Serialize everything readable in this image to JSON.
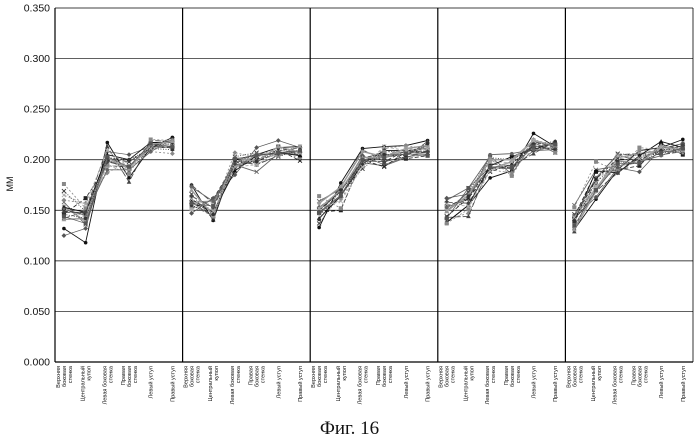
{
  "figure_caption": "Фиг. 16",
  "chart_data": {
    "type": "line",
    "title": "",
    "ylabel": "MM",
    "xlabel": "",
    "ylim": [
      0,
      0.35
    ],
    "yticks": [
      "0.000",
      "0.050",
      "0.100",
      "0.150",
      "0.200",
      "0.250",
      "0.300",
      "0.350"
    ],
    "grid": "horizontal",
    "legend": "none",
    "groups": 5,
    "categories": [
      "Верхняя боковая стенка",
      "Центральный купол",
      "Левая боковая стенка",
      "Правая боковая стенка",
      "Левый уступ",
      "Правый уступ"
    ],
    "series_summary": "many overlapping measurement traces in black and grey (solid, dashed, dotted) with mixed markers",
    "mean_profile": [
      [
        0.15,
        0.145,
        0.2,
        0.195,
        0.212,
        0.215
      ],
      [
        0.16,
        0.15,
        0.197,
        0.2,
        0.208,
        0.207
      ],
      [
        0.15,
        0.168,
        0.2,
        0.203,
        0.208,
        0.21
      ],
      [
        0.15,
        0.16,
        0.195,
        0.193,
        0.213,
        0.213
      ],
      [
        0.14,
        0.175,
        0.195,
        0.2,
        0.21,
        0.212
      ]
    ],
    "series": [
      {
        "values": [
          [
            0.132,
            0.118,
            0.217,
            0.182,
            0.212,
            0.222
          ],
          [
            0.175,
            0.14,
            0.2,
            0.205,
            0.212,
            0.213
          ],
          [
            0.133,
            0.177,
            0.211,
            0.213,
            0.214,
            0.219
          ],
          [
            0.138,
            0.155,
            0.182,
            0.189,
            0.226,
            0.213
          ],
          [
            0.131,
            0.161,
            0.19,
            0.209,
            0.212,
            0.22
          ]
        ]
      },
      {
        "values": [
          [
            0.158,
            0.136,
            0.199,
            0.192,
            0.216,
            0.211
          ],
          [
            0.158,
            0.144,
            0.195,
            0.188,
            0.206,
            0.205
          ],
          [
            0.159,
            0.171,
            0.197,
            0.194,
            0.202,
            0.209
          ],
          [
            0.16,
            0.172,
            0.203,
            0.186,
            0.217,
            0.207
          ],
          [
            0.155,
            0.19,
            0.194,
            0.197,
            0.214,
            0.208
          ]
        ]
      },
      {
        "values": [
          [
            0.146,
            0.162,
            0.194,
            0.193,
            0.213,
            0.216
          ],
          [
            0.152,
            0.161,
            0.197,
            0.197,
            0.213,
            0.204
          ],
          [
            0.148,
            0.15,
            0.202,
            0.206,
            0.201,
            0.204
          ],
          [
            0.154,
            0.162,
            0.194,
            0.203,
            0.212,
            0.215
          ],
          [
            0.144,
            0.188,
            0.19,
            0.194,
            0.216,
            0.205
          ]
        ]
      },
      {
        "values": [
          [
            0.16,
            0.157,
            0.187,
            0.199,
            0.208,
            0.206
          ],
          [
            0.157,
            0.151,
            0.207,
            0.202,
            0.213,
            0.2
          ],
          [
            0.147,
            0.161,
            0.195,
            0.211,
            0.214,
            0.211
          ],
          [
            0.141,
            0.147,
            0.19,
            0.187,
            0.22,
            0.214
          ],
          [
            0.133,
            0.174,
            0.192,
            0.209,
            0.208,
            0.213
          ]
        ]
      },
      {
        "values": [
          [
            0.142,
            0.149,
            0.213,
            0.178,
            0.219,
            0.218
          ],
          [
            0.175,
            0.157,
            0.199,
            0.195,
            0.204,
            0.209
          ],
          [
            0.147,
            0.172,
            0.21,
            0.198,
            0.203,
            0.218
          ],
          [
            0.143,
            0.144,
            0.196,
            0.194,
            0.206,
            0.218
          ],
          [
            0.129,
            0.182,
            0.205,
            0.206,
            0.205,
            0.208
          ]
        ]
      },
      {
        "values": [
          [
            0.154,
            0.139,
            0.199,
            0.193,
            0.214,
            0.212
          ],
          [
            0.158,
            0.159,
            0.192,
            0.205,
            0.206,
            0.208
          ],
          [
            0.157,
            0.173,
            0.208,
            0.203,
            0.208,
            0.205
          ],
          [
            0.149,
            0.168,
            0.191,
            0.198,
            0.219,
            0.213
          ],
          [
            0.144,
            0.171,
            0.202,
            0.206,
            0.209,
            0.207
          ]
        ]
      },
      {
        "values": [
          [
            0.169,
            0.149,
            0.2,
            0.189,
            0.211,
            0.213
          ],
          [
            0.166,
            0.141,
            0.203,
            0.207,
            0.203,
            0.21
          ],
          [
            0.137,
            0.166,
            0.191,
            0.209,
            0.207,
            0.209
          ],
          [
            0.149,
            0.168,
            0.202,
            0.2,
            0.211,
            0.212
          ],
          [
            0.146,
            0.18,
            0.206,
            0.204,
            0.207,
            0.208
          ]
        ]
      },
      {
        "values": [
          [
            0.153,
            0.143,
            0.194,
            0.194,
            0.213,
            0.216
          ],
          [
            0.151,
            0.158,
            0.198,
            0.2,
            0.205,
            0.206
          ],
          [
            0.151,
            0.169,
            0.2,
            0.204,
            0.211,
            0.21
          ],
          [
            0.152,
            0.162,
            0.198,
            0.197,
            0.209,
            0.212
          ],
          [
            0.141,
            0.174,
            0.193,
            0.199,
            0.21,
            0.216
          ]
        ]
      },
      {
        "values": [
          [
            0.125,
            0.132,
            0.208,
            0.205,
            0.213,
            0.213
          ],
          [
            0.147,
            0.162,
            0.185,
            0.212,
            0.219,
            0.212
          ],
          [
            0.15,
            0.169,
            0.204,
            0.195,
            0.203,
            0.205
          ],
          [
            0.162,
            0.166,
            0.192,
            0.191,
            0.209,
            0.21
          ],
          [
            0.142,
            0.163,
            0.192,
            0.188,
            0.211,
            0.216
          ]
        ]
      },
      {
        "values": [
          [
            0.153,
            0.148,
            0.205,
            0.2,
            0.217,
            0.217
          ],
          [
            0.161,
            0.148,
            0.189,
            0.204,
            0.207,
            0.204
          ],
          [
            0.142,
            0.164,
            0.196,
            0.209,
            0.209,
            0.211
          ],
          [
            0.138,
            0.155,
            0.194,
            0.203,
            0.21,
            0.217
          ],
          [
            0.139,
            0.189,
            0.187,
            0.204,
            0.218,
            0.212
          ]
        ]
      },
      {
        "values": [
          [
            0.151,
            0.145,
            0.19,
            0.19,
            0.208,
            0.22
          ],
          [
            0.173,
            0.159,
            0.197,
            0.206,
            0.205,
            0.213
          ],
          [
            0.147,
            0.164,
            0.199,
            0.205,
            0.205,
            0.214
          ],
          [
            0.153,
            0.161,
            0.205,
            0.206,
            0.21,
            0.212
          ],
          [
            0.144,
            0.182,
            0.205,
            0.198,
            0.204,
            0.212
          ]
        ]
      },
      {
        "values": [
          [
            0.149,
            0.147,
            0.201,
            0.198,
            0.212,
            0.22
          ],
          [
            0.158,
            0.148,
            0.192,
            0.2,
            0.21,
            0.199
          ],
          [
            0.15,
            0.169,
            0.2,
            0.193,
            0.208,
            0.207
          ],
          [
            0.144,
            0.162,
            0.188,
            0.196,
            0.214,
            0.21
          ],
          [
            0.141,
            0.181,
            0.201,
            0.199,
            0.212,
            0.213
          ]
        ]
      },
      {
        "values": [
          [
            0.176,
            0.152,
            0.195,
            0.186,
            0.22,
            0.219
          ],
          [
            0.155,
            0.144,
            0.199,
            0.196,
            0.204,
            0.213
          ],
          [
            0.164,
            0.152,
            0.198,
            0.208,
            0.207,
            0.211
          ],
          [
            0.137,
            0.151,
            0.201,
            0.184,
            0.219,
            0.207
          ],
          [
            0.153,
            0.198,
            0.189,
            0.212,
            0.21,
            0.211
          ]
        ]
      },
      {
        "values": [
          [
            0.148,
            0.148,
            0.198,
            0.193,
            0.212,
            0.212
          ],
          [
            0.164,
            0.153,
            0.195,
            0.199,
            0.206,
            0.207
          ],
          [
            0.153,
            0.169,
            0.199,
            0.198,
            0.209,
            0.208
          ],
          [
            0.158,
            0.157,
            0.192,
            0.192,
            0.218,
            0.212
          ],
          [
            0.14,
            0.169,
            0.187,
            0.202,
            0.209,
            0.214
          ]
        ]
      },
      {
        "values": [
          [
            0.141,
            0.142,
            0.202,
            0.191,
            0.215,
            0.218
          ],
          [
            0.17,
            0.145,
            0.202,
            0.198,
            0.213,
            0.207
          ],
          [
            0.152,
            0.17,
            0.202,
            0.203,
            0.211,
            0.214
          ],
          [
            0.149,
            0.165,
            0.2,
            0.2,
            0.219,
            0.214
          ],
          [
            0.131,
            0.169,
            0.199,
            0.196,
            0.214,
            0.209
          ]
        ]
      },
      {
        "values": [
          [
            0.146,
            0.142,
            0.202,
            0.2,
            0.211,
            0.21
          ],
          [
            0.155,
            0.146,
            0.199,
            0.198,
            0.209,
            0.212
          ],
          [
            0.141,
            0.17,
            0.195,
            0.205,
            0.204,
            0.216
          ],
          [
            0.143,
            0.164,
            0.191,
            0.193,
            0.215,
            0.218
          ],
          [
            0.139,
            0.177,
            0.198,
            0.196,
            0.21,
            0.211
          ]
        ]
      },
      {
        "values": [
          [
            0.165,
            0.156,
            0.209,
            0.193,
            0.211,
            0.214
          ],
          [
            0.161,
            0.149,
            0.193,
            0.195,
            0.208,
            0.213
          ],
          [
            0.152,
            0.159,
            0.193,
            0.213,
            0.209,
            0.211
          ],
          [
            0.156,
            0.154,
            0.189,
            0.198,
            0.219,
            0.214
          ],
          [
            0.143,
            0.177,
            0.204,
            0.201,
            0.212,
            0.21
          ]
        ]
      },
      {
        "values": [
          [
            0.144,
            0.137,
            0.203,
            0.193,
            0.216,
            0.213
          ],
          [
            0.157,
            0.154,
            0.201,
            0.204,
            0.207,
            0.209
          ],
          [
            0.148,
            0.165,
            0.2,
            0.202,
            0.206,
            0.204
          ],
          [
            0.142,
            0.172,
            0.193,
            0.193,
            0.213,
            0.215
          ],
          [
            0.135,
            0.17,
            0.196,
            0.197,
            0.207,
            0.211
          ]
        ]
      }
    ]
  }
}
